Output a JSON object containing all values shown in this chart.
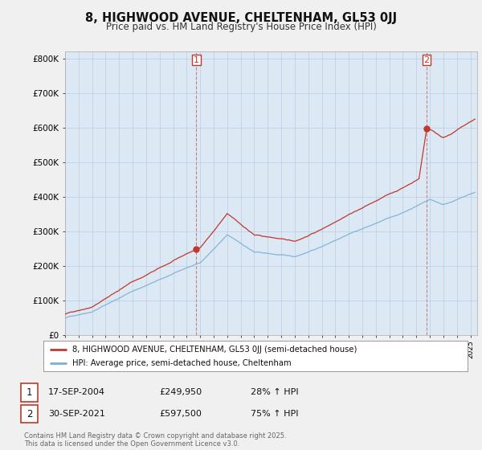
{
  "title": "8, HIGHWOOD AVENUE, CHELTENHAM, GL53 0JJ",
  "subtitle": "Price paid vs. HM Land Registry's House Price Index (HPI)",
  "xlim_start": 1995.0,
  "xlim_end": 2025.5,
  "ylim": [
    0,
    820000
  ],
  "yticks": [
    0,
    100000,
    200000,
    300000,
    400000,
    500000,
    600000,
    700000,
    800000
  ],
  "ytick_labels": [
    "£0",
    "£100K",
    "£200K",
    "£300K",
    "£400K",
    "£500K",
    "£600K",
    "£700K",
    "£800K"
  ],
  "hpi_color": "#7bafd4",
  "price_color": "#c0392b",
  "plot_bg_color": "#dce9f5",
  "background_color": "#f0f0f0",
  "sale1_x": 2004.72,
  "sale1_y": 249950,
  "sale2_x": 2021.75,
  "sale2_y": 597500,
  "legend_price": "8, HIGHWOOD AVENUE, CHELTENHAM, GL53 0JJ (semi-detached house)",
  "legend_hpi": "HPI: Average price, semi-detached house, Cheltenham",
  "table_row1": [
    "1",
    "17-SEP-2004",
    "£249,950",
    "28% ↑ HPI"
  ],
  "table_row2": [
    "2",
    "30-SEP-2021",
    "£597,500",
    "75% ↑ HPI"
  ],
  "footnote": "Contains HM Land Registry data © Crown copyright and database right 2025.\nThis data is licensed under the Open Government Licence v3.0."
}
